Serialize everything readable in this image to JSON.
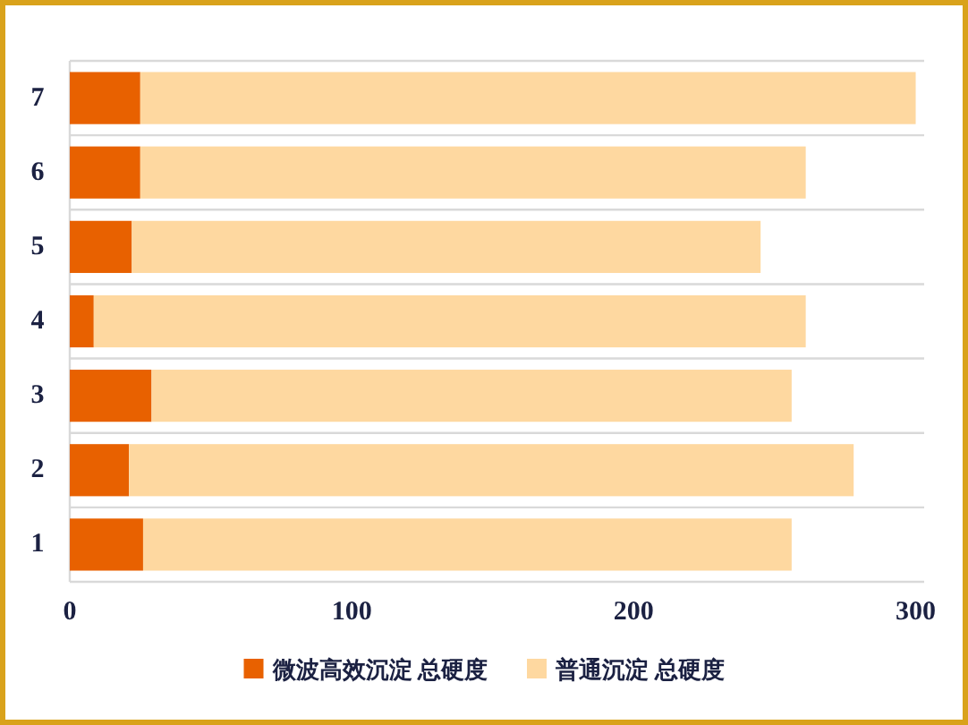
{
  "chart_data": {
    "type": "bar",
    "orientation": "horizontal",
    "stacked": true,
    "categories": [
      "7",
      "6",
      "5",
      "4",
      "3",
      "2",
      "1"
    ],
    "series": [
      {
        "name": "微波高效沉淀 总硬度",
        "color": "#e86100",
        "values": [
          25,
          25,
          22,
          8.5,
          29,
          21,
          26
        ]
      },
      {
        "name": "普通沉淀 总硬度",
        "color": "#fed8a0",
        "values": [
          275,
          236,
          223,
          252.5,
          227,
          257,
          230
        ]
      }
    ],
    "xlim": [
      0,
      303
    ],
    "xticks": [
      0,
      100,
      200,
      300
    ],
    "grid": "y",
    "legend": "bottom"
  }
}
